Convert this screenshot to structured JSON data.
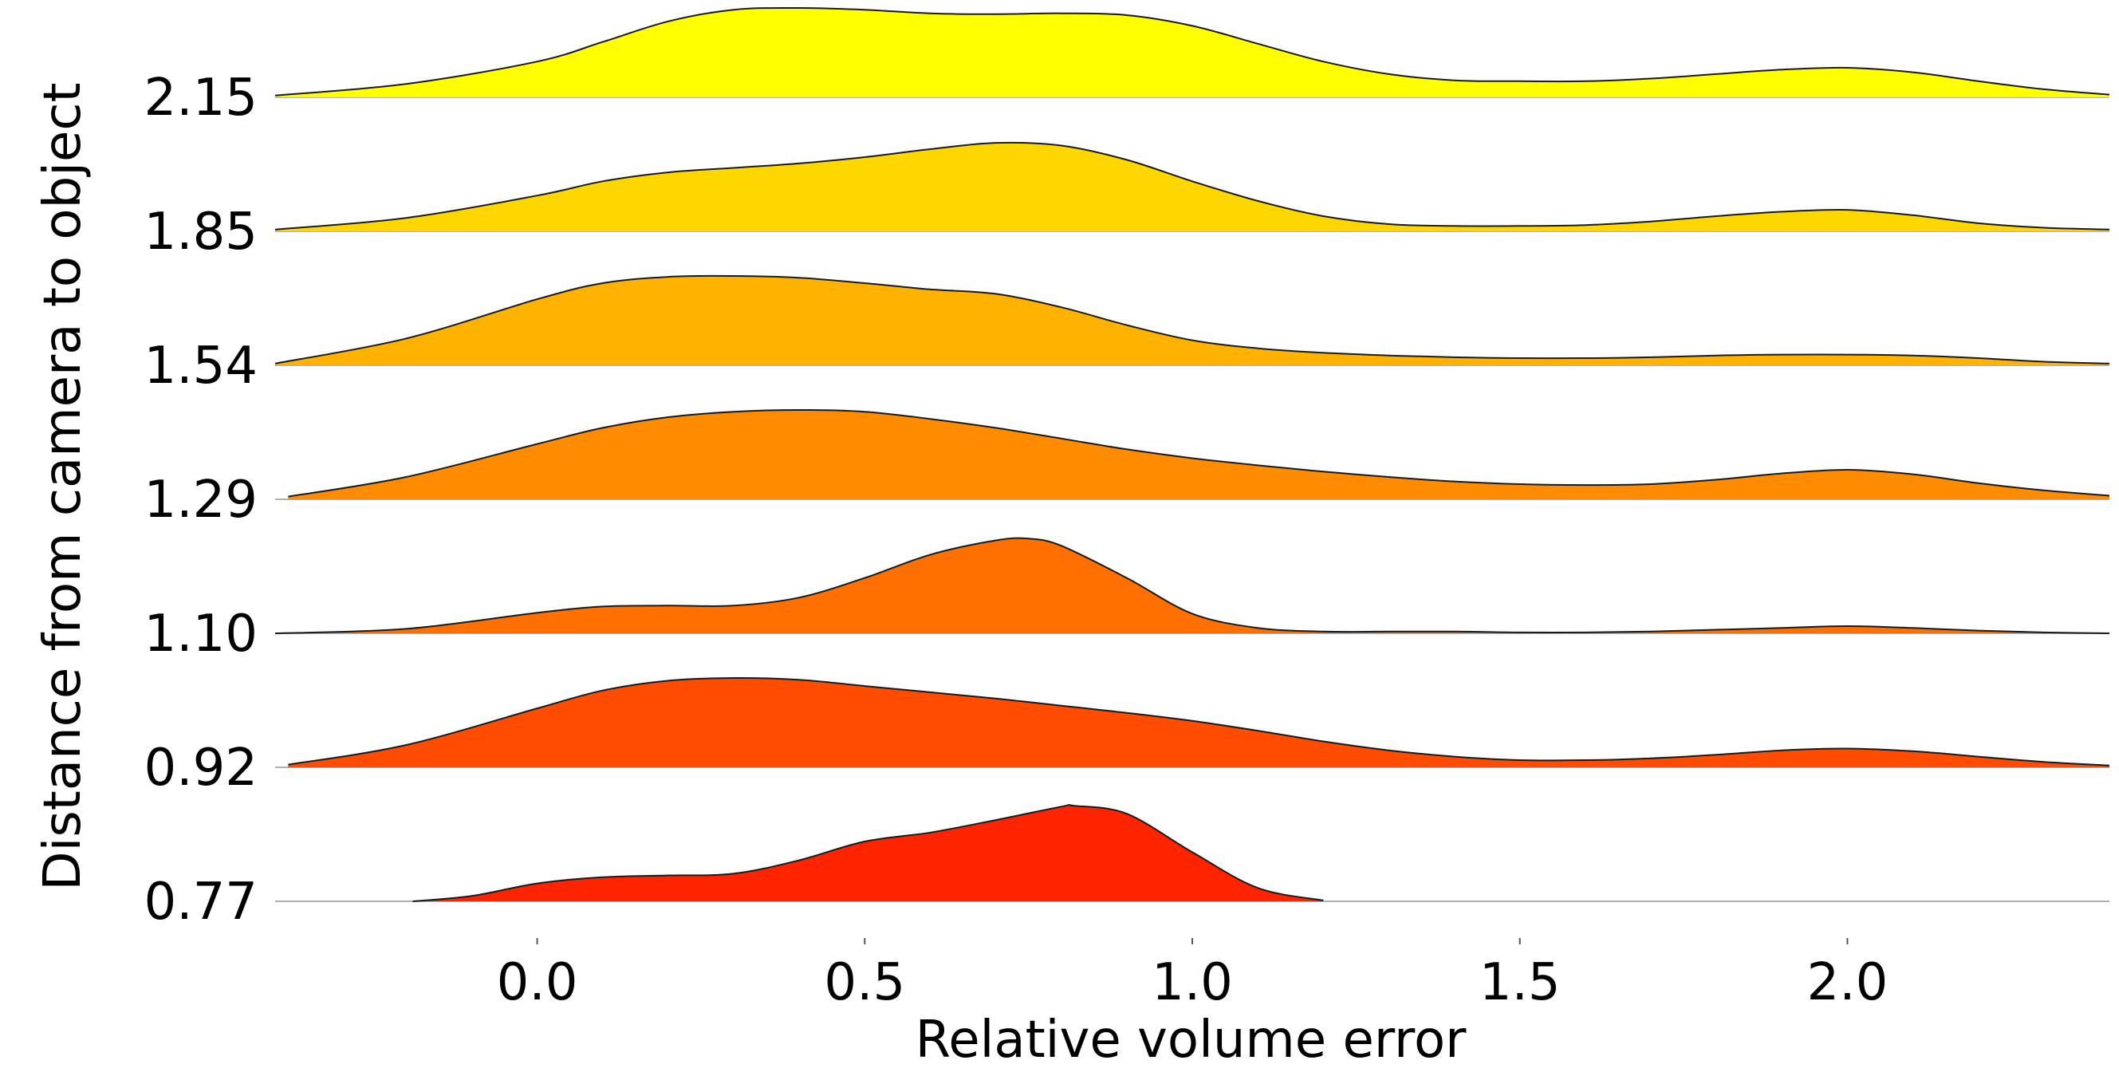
{
  "chart_data": {
    "type": "area",
    "subtype": "ridgeline",
    "title": "",
    "xlabel": "Relative volume error",
    "ylabel": "Distance from camera to object",
    "xlim": [
      -0.4,
      2.4
    ],
    "xticks": [
      0.0,
      0.5,
      1.0,
      1.5,
      2.0
    ],
    "xtick_labels": [
      "0.0",
      "0.5",
      "1.0",
      "1.5",
      "2.0"
    ],
    "grid": false,
    "legend": "none",
    "series": [
      {
        "name": "2.15",
        "color": "#ffff00",
        "x": [
          -0.4,
          -0.2,
          0.0,
          0.1,
          0.2,
          0.3,
          0.4,
          0.5,
          0.6,
          0.7,
          0.8,
          0.9,
          1.0,
          1.1,
          1.2,
          1.3,
          1.4,
          1.5,
          1.6,
          1.7,
          1.8,
          1.9,
          2.0,
          2.1,
          2.2,
          2.3,
          2.4
        ],
        "y": [
          0.02,
          0.15,
          0.4,
          0.62,
          0.85,
          0.98,
          1.0,
          0.98,
          0.94,
          0.93,
          0.94,
          0.92,
          0.8,
          0.6,
          0.4,
          0.26,
          0.19,
          0.18,
          0.18,
          0.21,
          0.26,
          0.31,
          0.33,
          0.28,
          0.18,
          0.09,
          0.03
        ]
      },
      {
        "name": "1.85",
        "color": "#ffd700",
        "x": [
          -0.4,
          -0.2,
          0.0,
          0.1,
          0.2,
          0.3,
          0.4,
          0.5,
          0.6,
          0.7,
          0.8,
          0.9,
          1.0,
          1.1,
          1.2,
          1.3,
          1.4,
          1.5,
          1.6,
          1.7,
          1.8,
          1.9,
          2.0,
          2.1,
          2.2,
          2.3,
          2.4
        ],
        "y": [
          0.02,
          0.15,
          0.4,
          0.56,
          0.66,
          0.71,
          0.76,
          0.83,
          0.92,
          0.99,
          0.96,
          0.8,
          0.56,
          0.34,
          0.17,
          0.08,
          0.06,
          0.06,
          0.07,
          0.11,
          0.17,
          0.22,
          0.24,
          0.18,
          0.09,
          0.04,
          0.02
        ]
      },
      {
        "name": "1.54",
        "color": "#ffb300",
        "x": [
          -0.4,
          -0.2,
          0.0,
          0.1,
          0.2,
          0.3,
          0.4,
          0.5,
          0.6,
          0.7,
          0.8,
          0.9,
          1.0,
          1.1,
          1.2,
          1.3,
          1.4,
          1.5,
          1.6,
          1.7,
          1.8,
          1.9,
          2.0,
          2.1,
          2.2,
          2.3,
          2.4
        ],
        "y": [
          0.02,
          0.3,
          0.74,
          0.92,
          0.99,
          1.0,
          0.98,
          0.92,
          0.85,
          0.8,
          0.65,
          0.45,
          0.28,
          0.19,
          0.14,
          0.11,
          0.09,
          0.08,
          0.08,
          0.09,
          0.11,
          0.12,
          0.12,
          0.11,
          0.08,
          0.04,
          0.02
        ]
      },
      {
        "name": "1.29",
        "color": "#ff8c00",
        "x": [
          -0.38,
          -0.2,
          0.0,
          0.1,
          0.2,
          0.3,
          0.4,
          0.5,
          0.6,
          0.7,
          0.8,
          0.9,
          1.0,
          1.1,
          1.2,
          1.3,
          1.4,
          1.5,
          1.6,
          1.7,
          1.8,
          1.9,
          2.0,
          2.1,
          2.2,
          2.3,
          2.4
        ],
        "y": [
          0.03,
          0.25,
          0.62,
          0.8,
          0.92,
          0.98,
          1.0,
          0.98,
          0.9,
          0.8,
          0.68,
          0.56,
          0.46,
          0.38,
          0.31,
          0.25,
          0.2,
          0.17,
          0.16,
          0.17,
          0.22,
          0.29,
          0.33,
          0.28,
          0.18,
          0.1,
          0.04
        ]
      },
      {
        "name": "1.10",
        "color": "#ff7000",
        "x": [
          -0.4,
          -0.2,
          0.0,
          0.1,
          0.2,
          0.3,
          0.4,
          0.5,
          0.6,
          0.7,
          0.75,
          0.8,
          0.9,
          1.0,
          1.1,
          1.2,
          1.3,
          1.4,
          1.5,
          1.6,
          1.7,
          1.8,
          1.9,
          2.0,
          2.1,
          2.2,
          2.3,
          2.4
        ],
        "y": [
          0.0,
          0.05,
          0.23,
          0.3,
          0.31,
          0.31,
          0.4,
          0.62,
          0.88,
          1.04,
          1.06,
          0.98,
          0.62,
          0.22,
          0.06,
          0.02,
          0.02,
          0.02,
          0.01,
          0.01,
          0.02,
          0.04,
          0.06,
          0.08,
          0.06,
          0.03,
          0.01,
          0.0
        ]
      },
      {
        "name": "0.92",
        "color": "#ff4c00",
        "x": [
          -0.38,
          -0.2,
          0.0,
          0.1,
          0.2,
          0.3,
          0.4,
          0.5,
          0.6,
          0.7,
          0.8,
          0.9,
          1.0,
          1.1,
          1.2,
          1.3,
          1.4,
          1.5,
          1.6,
          1.7,
          1.8,
          1.9,
          2.0,
          2.1,
          2.2,
          2.3,
          2.4
        ],
        "y": [
          0.03,
          0.25,
          0.66,
          0.86,
          0.97,
          1.0,
          0.98,
          0.91,
          0.84,
          0.77,
          0.69,
          0.61,
          0.52,
          0.41,
          0.29,
          0.19,
          0.12,
          0.08,
          0.08,
          0.1,
          0.14,
          0.19,
          0.21,
          0.18,
          0.12,
          0.06,
          0.02
        ]
      },
      {
        "name": "0.77",
        "color": "#ff2400",
        "x": [
          -0.19,
          -0.1,
          0.0,
          0.1,
          0.2,
          0.3,
          0.4,
          0.5,
          0.6,
          0.7,
          0.8,
          0.82,
          0.9,
          1.0,
          1.1,
          1.2
        ],
        "y": [
          0.0,
          0.06,
          0.2,
          0.27,
          0.29,
          0.31,
          0.46,
          0.67,
          0.77,
          0.91,
          1.06,
          1.07,
          0.98,
          0.55,
          0.15,
          0.01
        ]
      }
    ]
  }
}
